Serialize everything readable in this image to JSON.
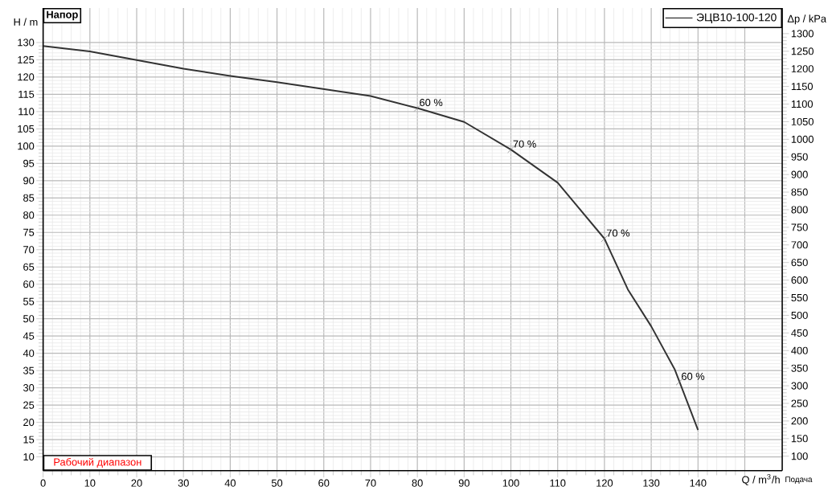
{
  "chart_data": {
    "type": "line",
    "xlabel": "Q / m$^{3}$/h",
    "ylabel": "H / m",
    "y2label": "Δp / kPa",
    "x": [
      0,
      10,
      20,
      30,
      40,
      50,
      60,
      70,
      80,
      90,
      100,
      110,
      120,
      125,
      130,
      135,
      140
    ],
    "series": [
      {
        "name": "ЭЦВ10-100-120",
        "color": "#333333",
        "values": [
          129,
          127.4,
          124.9,
          122.4,
          120.3,
          118.5,
          116.5,
          114.5,
          111,
          107,
          99,
          89.4,
          73.2,
          58.5,
          47.8,
          35.4,
          17.8
        ]
      }
    ],
    "xlim": [
      0,
      158
    ],
    "ylim": [
      6,
      140
    ],
    "y2lim": [
      58.8,
      1372.9
    ],
    "xticks": [
      0,
      10,
      20,
      30,
      40,
      50,
      60,
      70,
      80,
      90,
      100,
      110,
      120,
      130,
      140,
      {
        "value": 150,
        "label": null
      }
    ],
    "yticks": [
      10,
      15,
      20,
      25,
      30,
      35,
      40,
      45,
      50,
      55,
      60,
      65,
      70,
      75,
      80,
      85,
      90,
      95,
      100,
      105,
      110,
      115,
      120,
      125,
      130
    ],
    "y2ticks": [
      100,
      150,
      200,
      250,
      300,
      350,
      400,
      450,
      500,
      550,
      600,
      650,
      700,
      750,
      800,
      850,
      900,
      950,
      1000,
      1050,
      1100,
      1150,
      1200,
      1250,
      1300
    ],
    "grid": true,
    "legend": "top right",
    "marker": "none",
    "line_style": "solid",
    "annotations": [
      "Напор",
      "Рабочий диапазон",
      "Подача",
      {
        "text": "60 %",
        "x": 80,
        "y": 111
      },
      {
        "text": "70 %",
        "x": 100,
        "y": 99
      },
      {
        "text": "70 %",
        "x": 120,
        "y": 73.2
      },
      {
        "text": "60 %",
        "x": 136,
        "y": 31.7
      }
    ]
  }
}
